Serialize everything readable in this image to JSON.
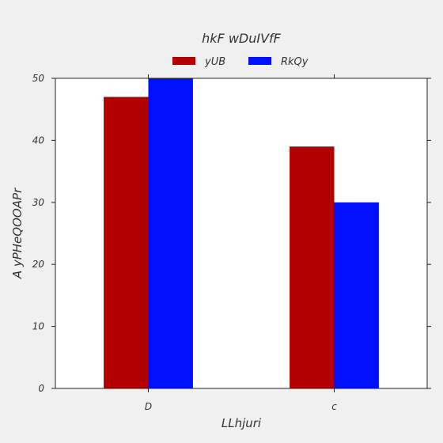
{
  "chart_data": {
    "type": "bar",
    "title": "hkF wDuIVfF",
    "xlabel": "LLhjuri",
    "ylabel": "A yPHeQOOAPr",
    "categories": [
      "D",
      "c"
    ],
    "series": [
      {
        "name": "yUB",
        "values": [
          47,
          39
        ],
        "color": "#b30000"
      },
      {
        "name": "RkQy",
        "values": [
          50,
          30
        ],
        "color": "#0010ff"
      }
    ],
    "ylim": [
      0,
      50
    ],
    "yticks": [
      0,
      10,
      20,
      30,
      40,
      50
    ],
    "grid": false,
    "legend_position": "top-center"
  }
}
